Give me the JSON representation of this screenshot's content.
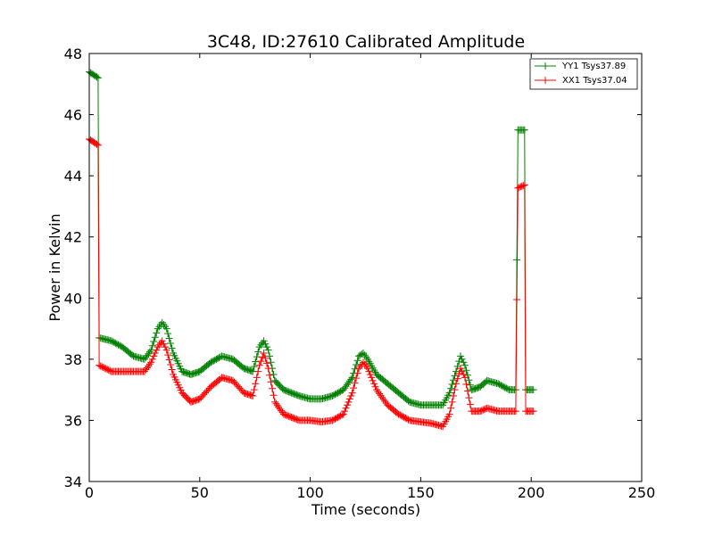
{
  "chart_data": {
    "type": "line",
    "title": "3C48, ID:27610 Calibrated Amplitude",
    "xlabel": "Time (seconds)",
    "ylabel": "Power in Kelvin",
    "xlim": [
      0,
      250
    ],
    "ylim": [
      34,
      48
    ],
    "xticks": [
      "0",
      "50",
      "100",
      "150",
      "200",
      "250"
    ],
    "yticks": [
      "34",
      "36",
      "38",
      "40",
      "42",
      "44",
      "46",
      "48"
    ],
    "grid": false,
    "legend_position": "top-right",
    "marker": "+",
    "series": [
      {
        "name": "YY1 Tsys37.89",
        "color": "#008000",
        "points": [
          [
            0,
            47.4
          ],
          [
            4,
            47.2
          ],
          [
            4.5,
            38.7
          ],
          [
            10,
            38.6
          ],
          [
            15,
            38.4
          ],
          [
            20,
            38.1
          ],
          [
            25,
            38.0
          ],
          [
            28,
            38.3
          ],
          [
            31,
            39.0
          ],
          [
            33,
            39.2
          ],
          [
            35,
            39.0
          ],
          [
            38,
            38.2
          ],
          [
            42,
            37.6
          ],
          [
            46,
            37.5
          ],
          [
            50,
            37.6
          ],
          [
            55,
            37.9
          ],
          [
            60,
            38.1
          ],
          [
            65,
            38.0
          ],
          [
            70,
            37.7
          ],
          [
            74,
            37.6
          ],
          [
            77,
            38.4
          ],
          [
            79,
            38.6
          ],
          [
            81,
            38.3
          ],
          [
            84,
            37.3
          ],
          [
            88,
            37.0
          ],
          [
            95,
            36.8
          ],
          [
            100,
            36.7
          ],
          [
            105,
            36.7
          ],
          [
            110,
            36.8
          ],
          [
            115,
            37.0
          ],
          [
            119,
            37.4
          ],
          [
            122,
            38.1
          ],
          [
            124,
            38.2
          ],
          [
            126,
            38.0
          ],
          [
            130,
            37.5
          ],
          [
            135,
            37.2
          ],
          [
            140,
            36.9
          ],
          [
            145,
            36.6
          ],
          [
            150,
            36.5
          ],
          [
            155,
            36.5
          ],
          [
            160,
            36.5
          ],
          [
            163,
            36.9
          ],
          [
            166,
            37.6
          ],
          [
            168,
            38.1
          ],
          [
            170,
            37.8
          ],
          [
            173,
            37.0
          ],
          [
            177,
            37.1
          ],
          [
            180,
            37.3
          ],
          [
            185,
            37.2
          ],
          [
            190,
            37.0
          ],
          [
            193,
            37.0
          ],
          [
            194,
            45.5
          ],
          [
            197,
            45.5
          ],
          [
            197.5,
            37.0
          ],
          [
            201,
            37.0
          ]
        ]
      },
      {
        "name": "XX1 Tsys37.04",
        "color": "#ff0000",
        "points": [
          [
            0,
            45.2
          ],
          [
            4,
            45.0
          ],
          [
            4.5,
            37.8
          ],
          [
            10,
            37.6
          ],
          [
            15,
            37.6
          ],
          [
            20,
            37.6
          ],
          [
            25,
            37.6
          ],
          [
            28,
            37.9
          ],
          [
            31,
            38.4
          ],
          [
            33,
            38.6
          ],
          [
            35,
            38.3
          ],
          [
            38,
            37.5
          ],
          [
            42,
            36.9
          ],
          [
            46,
            36.6
          ],
          [
            50,
            36.7
          ],
          [
            55,
            37.1
          ],
          [
            60,
            37.4
          ],
          [
            65,
            37.3
          ],
          [
            70,
            36.9
          ],
          [
            74,
            36.8
          ],
          [
            77,
            37.8
          ],
          [
            79,
            38.2
          ],
          [
            81,
            37.7
          ],
          [
            84,
            36.6
          ],
          [
            88,
            36.2
          ],
          [
            95,
            36.0
          ],
          [
            100,
            36.0
          ],
          [
            105,
            35.95
          ],
          [
            110,
            36.0
          ],
          [
            115,
            36.2
          ],
          [
            119,
            36.9
          ],
          [
            122,
            37.7
          ],
          [
            124,
            37.9
          ],
          [
            126,
            37.7
          ],
          [
            130,
            37.0
          ],
          [
            135,
            36.5
          ],
          [
            140,
            36.2
          ],
          [
            145,
            36.0
          ],
          [
            150,
            35.95
          ],
          [
            155,
            35.9
          ],
          [
            160,
            35.8
          ],
          [
            163,
            36.2
          ],
          [
            166,
            37.2
          ],
          [
            168,
            37.7
          ],
          [
            170,
            37.4
          ],
          [
            173,
            36.3
          ],
          [
            177,
            36.3
          ],
          [
            180,
            36.4
          ],
          [
            185,
            36.3
          ],
          [
            190,
            36.3
          ],
          [
            193,
            36.3
          ],
          [
            194,
            43.6
          ],
          [
            197,
            43.7
          ],
          [
            197.5,
            36.3
          ],
          [
            201,
            36.3
          ]
        ]
      }
    ]
  }
}
